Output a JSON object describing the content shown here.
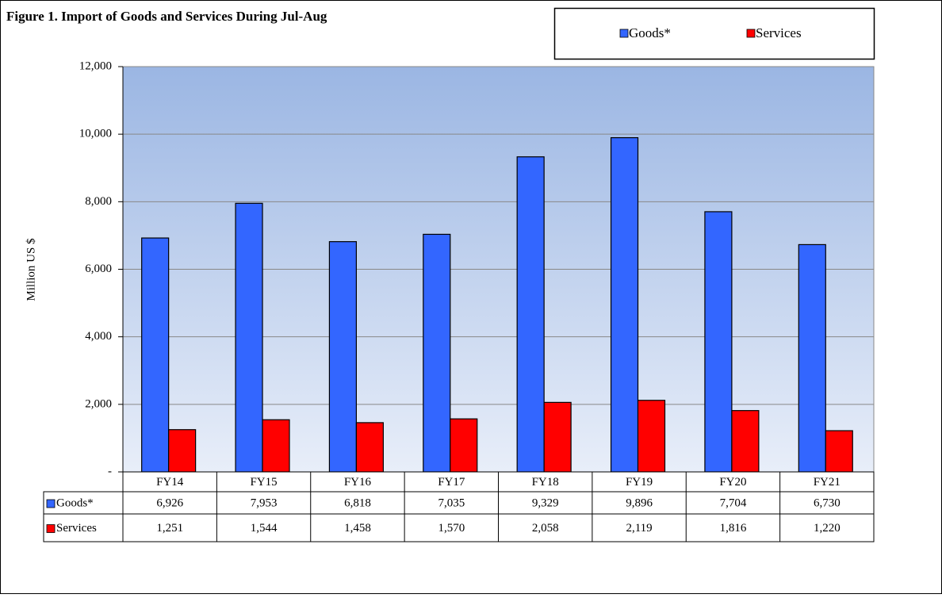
{
  "chart_data": {
    "type": "bar",
    "title": "Figure 1. Import of Goods and Services  During Jul-Aug",
    "y_label": "Million US $",
    "categories": [
      "FY14",
      "FY15",
      "FY16",
      "FY17",
      "FY18",
      "FY19",
      "FY20",
      "FY21"
    ],
    "series": [
      {
        "name": "Goods*",
        "color": "#3366ff",
        "values": [
          6926,
          7953,
          6818,
          7035,
          9329,
          9896,
          7704,
          6730
        ],
        "value_labels": [
          "6,926",
          "7,953",
          "6,818",
          "7,035",
          "9,329",
          "9,896",
          "7,704",
          "6,730"
        ]
      },
      {
        "name": "Services",
        "color": "#ff0000",
        "values": [
          1251,
          1544,
          1458,
          1570,
          2058,
          2119,
          1816,
          1220
        ],
        "value_labels": [
          "1,251",
          "1,544",
          "1,458",
          "1,570",
          "2,058",
          "2,119",
          "1,816",
          "1,220"
        ]
      }
    ],
    "ylim": [
      0,
      12000
    ],
    "yticks": [
      {
        "value": 0,
        "label": "-"
      },
      {
        "value": 2000,
        "label": "2,000"
      },
      {
        "value": 4000,
        "label": "4,000"
      },
      {
        "value": 6000,
        "label": "6,000"
      },
      {
        "value": 8000,
        "label": "8,000"
      },
      {
        "value": 10000,
        "label": "10,000"
      },
      {
        "value": 12000,
        "label": "12,000"
      }
    ],
    "grid": true,
    "legend": "top-right"
  }
}
